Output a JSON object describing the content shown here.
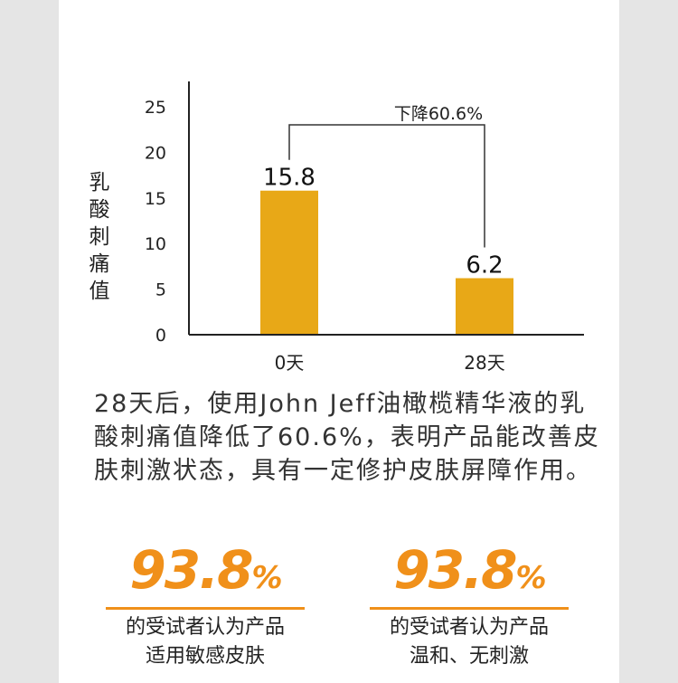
{
  "chart_data": {
    "type": "bar",
    "categories": [
      "0天",
      "28天"
    ],
    "values": [
      15.8,
      6.2
    ],
    "data_labels": [
      "15.8",
      "6.2"
    ],
    "ylabel": "乳酸刺痛值",
    "ylim": [
      0,
      25
    ],
    "yticks": [
      0,
      5,
      10,
      15,
      20,
      25
    ],
    "bar_color": "#e8a817",
    "annotation": "下降60.6%",
    "grid": false
  },
  "description": "28天后，使用John Jeff油橄榄精华液的乳酸刺痛值降低了60.6%，表明产品能改善皮肤刺激状态，具有一定修护皮肤屏障作用。",
  "stats": [
    {
      "value": "93.8",
      "unit": "%",
      "line1": "的受试者认为产品",
      "line2": "适用敏感皮肤"
    },
    {
      "value": "93.8",
      "unit": "%",
      "line1": "的受试者认为产品",
      "line2": "温和、无刺激"
    }
  ],
  "colors": {
    "accent": "#f0901a",
    "bar": "#e8a817",
    "background": "#e5e5e5"
  }
}
